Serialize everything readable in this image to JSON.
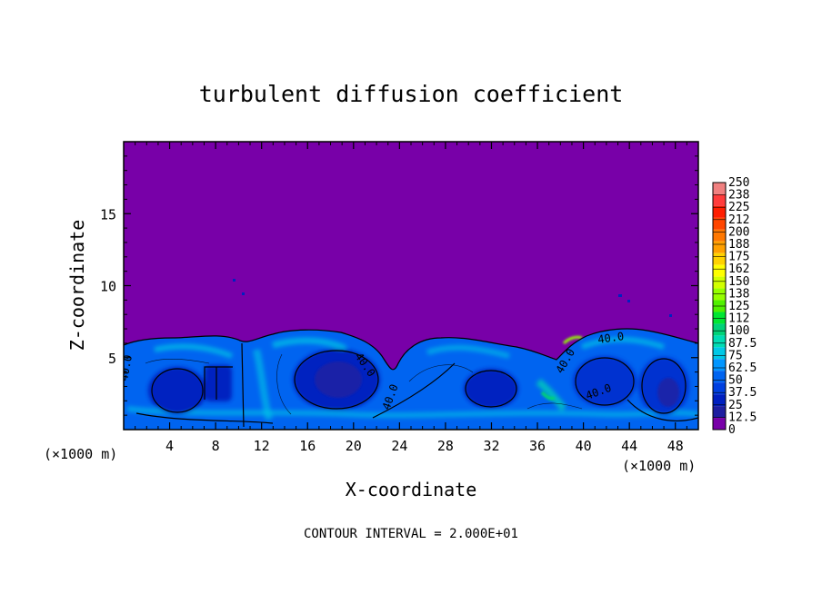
{
  "chart_data": {
    "type": "heatmap",
    "title": "turbulent diffusion coefficient",
    "xlabel": "X-coordinate",
    "ylabel": "Z-coordinate",
    "x_unit_note": "(×1000 m)",
    "y_unit_note": "(×1000 m)",
    "xlim": [
      0,
      50
    ],
    "ylim": [
      0,
      20
    ],
    "x_ticks": [
      4,
      8,
      12,
      16,
      20,
      24,
      28,
      32,
      36,
      40,
      44,
      48
    ],
    "y_ticks": [
      5,
      10,
      15
    ],
    "footnote": "CONTOUR INTERVAL = 2.000E+01",
    "contour_labels": [
      "40.0",
      "40.0",
      "40.0",
      "40.0",
      "40.0",
      "40.0"
    ],
    "colorbar": {
      "labels": [
        "250",
        "238",
        "225",
        "212",
        "200",
        "188",
        "175",
        "162",
        "150",
        "138",
        "125",
        "112",
        "100",
        "87.5",
        "75",
        "62.5",
        "50",
        "37.5",
        "25",
        "12.5",
        "0"
      ],
      "colors": [
        "#f08080",
        "#ff3c3c",
        "#ff1e00",
        "#ff4600",
        "#ff7800",
        "#ffa000",
        "#ffd200",
        "#ffff00",
        "#d2ff00",
        "#96ff00",
        "#50f000",
        "#00e632",
        "#00d278",
        "#00dcb4",
        "#00c8e6",
        "#0096ff",
        "#0064f0",
        "#0040e0",
        "#0020c0",
        "#1e1ea0",
        "#7800a8"
      ]
    }
  }
}
